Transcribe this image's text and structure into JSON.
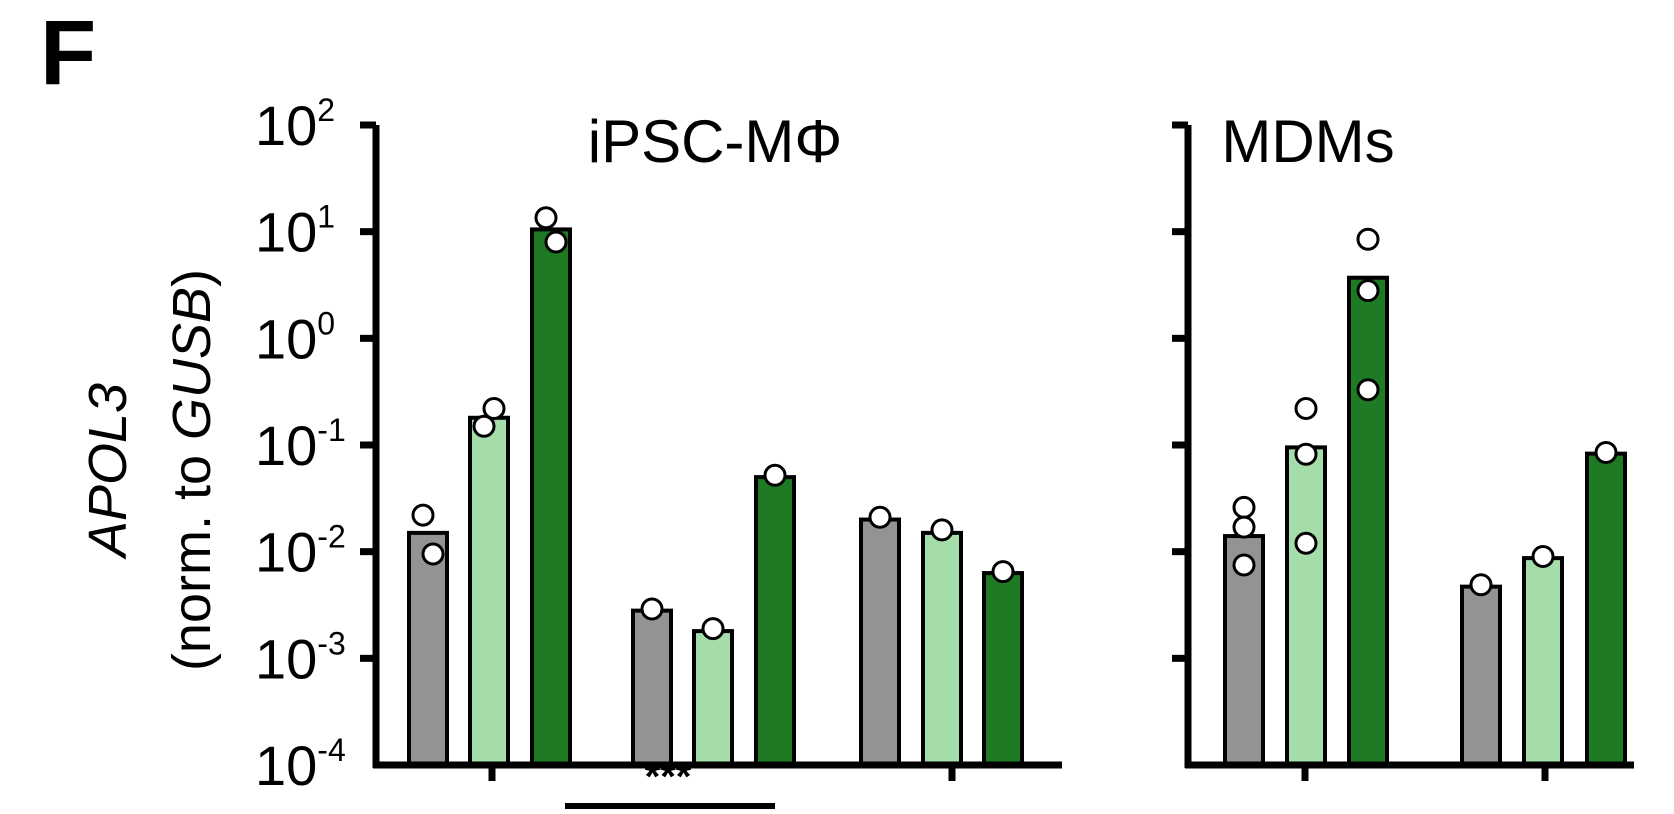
{
  "panel_label": "F",
  "ylabel": {
    "gene": "APOL3",
    "norm_prefix": "(norm. to ",
    "norm_gene": "GUSB",
    "norm_suffix": ")"
  },
  "significance_label": "***",
  "colors": {
    "gray": "#939396",
    "light_green": "#a4dcaa",
    "dark_green": "#1e7a23",
    "axis": "#000000",
    "point_fill": "#ffffff"
  },
  "chart_data": [
    {
      "type": "bar",
      "title": "iPSC-MΦ",
      "yscale": "log",
      "ylim": [
        0.0001,
        100
      ],
      "ytick_labels": [
        {
          "base": "10",
          "exp": "2"
        },
        {
          "base": "10",
          "exp": "1"
        },
        {
          "base": "10",
          "exp": "0"
        },
        {
          "base": "10",
          "exp": "-1"
        },
        {
          "base": "10",
          "exp": "-2"
        },
        {
          "base": "10",
          "exp": "-3"
        },
        {
          "base": "10",
          "exp": "-4"
        }
      ],
      "groups": [
        {
          "bars": [
            {
              "color": "gray",
              "value": 0.015,
              "points": [
                0.022,
                0.0095
              ]
            },
            {
              "color": "light_green",
              "value": 0.18,
              "points": [
                0.15,
                0.22
              ]
            },
            {
              "color": "dark_green",
              "value": 10.5,
              "points": [
                13.5,
                8.0
              ]
            }
          ]
        },
        {
          "bars": [
            {
              "color": "gray",
              "value": 0.0028,
              "points": [
                0.0029
              ]
            },
            {
              "color": "light_green",
              "value": 0.0018,
              "points": [
                0.0019
              ]
            },
            {
              "color": "dark_green",
              "value": 0.05,
              "points": [
                0.052
              ]
            }
          ]
        },
        {
          "bars": [
            {
              "color": "gray",
              "value": 0.02,
              "points": [
                0.021
              ]
            },
            {
              "color": "light_green",
              "value": 0.015,
              "points": [
                0.016
              ]
            },
            {
              "color": "dark_green",
              "value": 0.0063,
              "points": [
                0.0065
              ]
            }
          ]
        }
      ]
    },
    {
      "type": "bar",
      "title": "MDMs",
      "yscale": "log",
      "ylim": [
        0.0001,
        100
      ],
      "groups": [
        {
          "bars": [
            {
              "color": "gray",
              "value": 0.014,
              "points": [
                0.026,
                0.017,
                0.0075
              ]
            },
            {
              "color": "light_green",
              "value": 0.095,
              "points": [
                0.22,
                0.082,
                0.012
              ]
            },
            {
              "color": "dark_green",
              "value": 3.7,
              "points": [
                8.5,
                2.8,
                0.33
              ]
            }
          ]
        },
        {
          "bars": [
            {
              "color": "gray",
              "value": 0.0047,
              "points": [
                0.0049
              ]
            },
            {
              "color": "light_green",
              "value": 0.0087,
              "points": [
                0.009
              ]
            },
            {
              "color": "dark_green",
              "value": 0.083,
              "points": [
                0.085
              ]
            }
          ]
        }
      ]
    }
  ]
}
